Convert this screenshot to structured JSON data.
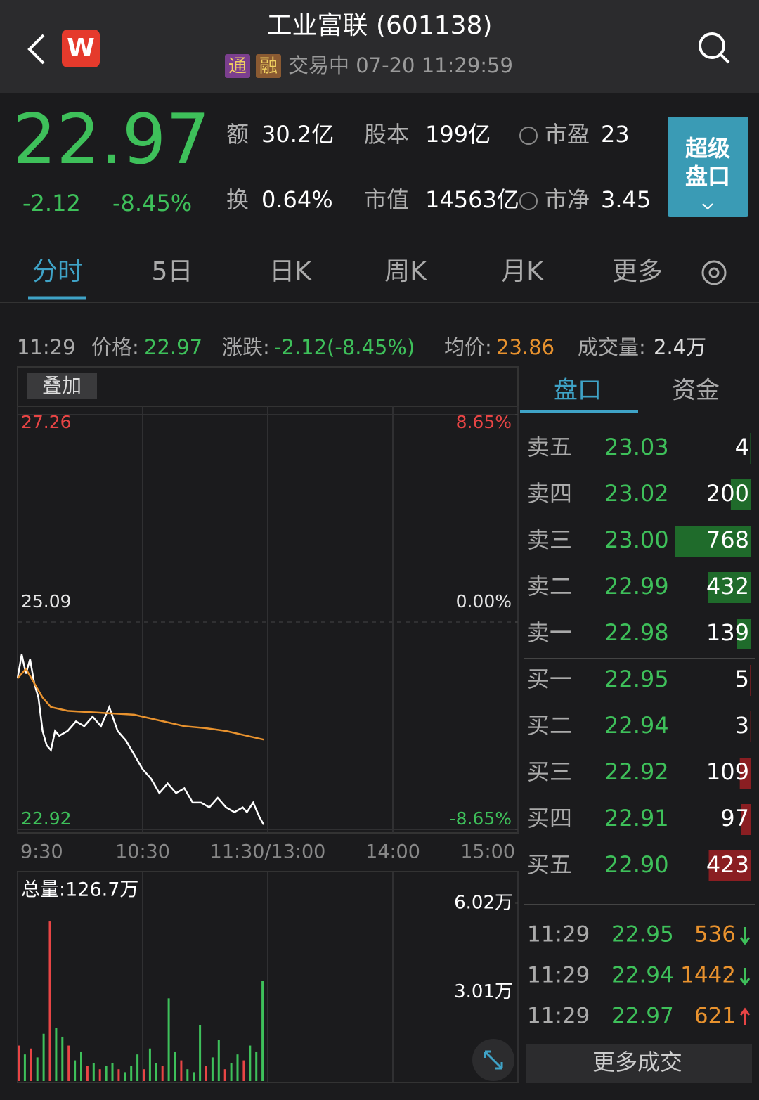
{
  "header": {
    "logo": "W",
    "title": "工业富联 (601138)",
    "tags": [
      "通",
      "融"
    ],
    "status": "交易中 07-20 11:29:59"
  },
  "quote": {
    "price": "22.97",
    "change": "-2.12",
    "change_pct": "-8.45%",
    "metrics": [
      {
        "label": "额",
        "value": "30.2亿"
      },
      {
        "label": "股本",
        "value": "199亿"
      },
      {
        "label": "市盈",
        "value": "23"
      },
      {
        "label": "换",
        "value": "0.64%"
      },
      {
        "label": "市值",
        "value": "14563亿"
      },
      {
        "label": "市净",
        "value": "3.45"
      }
    ],
    "button": [
      "超级",
      "盘口"
    ]
  },
  "tabs": [
    "分时",
    "5日",
    "日K",
    "周K",
    "月K",
    "更多"
  ],
  "info": {
    "time": "11:29",
    "price_label": "价格:",
    "price": "22.97",
    "change_label": "涨跌:",
    "change": "-2.12(-8.45%)",
    "avg_label": "均价:",
    "avg": "23.86",
    "volume_label": "成交量:",
    "volume": "2.4万"
  },
  "overlay_button": "叠加",
  "chart_data": [
    {
      "type": "line",
      "xlim": [
        0,
        240
      ],
      "xticks": [
        {
          "value": 0,
          "label": "9:30"
        },
        {
          "value": 60,
          "label": "10:30"
        },
        {
          "value": 120,
          "label": "11:30/13:00"
        },
        {
          "value": 180,
          "label": "14:00"
        },
        {
          "value": 240,
          "label": "15:00"
        }
      ],
      "ylim": [
        22.92,
        27.26
      ],
      "yticks": [
        22.92,
        25.09,
        27.26
      ],
      "ytick_colors": [
        "#3ec05a",
        "#e6e6e6",
        "#e84545"
      ],
      "y2lim": [
        -8.65,
        8.65
      ],
      "y2ticks": [
        {
          "value": -8.65,
          "label": "-8.65%"
        },
        {
          "value": 0,
          "label": "0.00%"
        },
        {
          "value": 8.65,
          "label": "8.65%"
        }
      ],
      "grid": true,
      "series": [
        {
          "color": "#ffffff",
          "x": [
            0,
            2,
            4,
            6,
            8,
            10,
            12,
            14,
            16,
            18,
            20,
            24,
            28,
            32,
            36,
            40,
            44,
            48,
            52,
            56,
            60,
            64,
            68,
            72,
            76,
            80,
            84,
            88,
            92,
            96,
            100,
            104,
            108,
            110,
            113,
            116,
            118
          ],
          "values": [
            24.5,
            24.75,
            24.55,
            24.7,
            24.45,
            24.3,
            23.95,
            23.8,
            23.75,
            23.95,
            23.9,
            23.95,
            24.05,
            24.0,
            24.1,
            24.0,
            24.2,
            23.95,
            23.85,
            23.7,
            23.55,
            23.45,
            23.3,
            23.4,
            23.3,
            23.35,
            23.2,
            23.2,
            23.15,
            23.25,
            23.15,
            23.1,
            23.15,
            23.1,
            23.2,
            23.05,
            22.97
          ]
        },
        {
          "color": "#e8922e",
          "x": [
            0,
            4,
            8,
            12,
            16,
            24,
            40,
            56,
            70,
            80,
            90,
            100,
            110,
            118
          ],
          "values": [
            24.5,
            24.6,
            24.45,
            24.3,
            24.2,
            24.16,
            24.14,
            24.12,
            24.05,
            24.0,
            23.98,
            23.95,
            23.9,
            23.86
          ]
        }
      ]
    },
    {
      "type": "bar",
      "title": "总量:126.7万",
      "xlim": [
        0,
        240
      ],
      "ylim": [
        0,
        6.02
      ],
      "yticks": [
        {
          "value": 3.01,
          "label": "3.01万"
        },
        {
          "value": 6.02,
          "label": "6.02万"
        }
      ],
      "x": [
        0,
        3,
        6,
        9,
        12,
        15,
        18,
        21,
        24,
        27,
        30,
        33,
        36,
        39,
        42,
        45,
        48,
        51,
        54,
        57,
        60,
        63,
        66,
        69,
        72,
        75,
        78,
        81,
        84,
        87,
        90,
        93,
        96,
        99,
        102,
        105,
        108,
        111,
        114,
        117
      ],
      "values": [
        1.2,
        0.9,
        1.1,
        0.8,
        1.6,
        5.4,
        1.8,
        1.5,
        1.2,
        0.7,
        1.0,
        0.5,
        0.6,
        0.4,
        0.5,
        0.6,
        0.4,
        0.3,
        0.5,
        0.9,
        0.4,
        1.1,
        0.6,
        0.5,
        2.8,
        1.0,
        0.7,
        0.4,
        0.3,
        1.9,
        0.5,
        0.8,
        1.4,
        0.4,
        0.6,
        0.9,
        0.7,
        1.2,
        1.0,
        3.4
      ],
      "colors": [
        "#e84545",
        "#3ec05a",
        "#e84545",
        "#3ec05a",
        "#3ec05a",
        "#e84545",
        "#3ec05a",
        "#3ec05a",
        "#e84545",
        "#3ec05a",
        "#3ec05a",
        "#e84545",
        "#3ec05a",
        "#e84545",
        "#3ec05a",
        "#3ec05a",
        "#e84545",
        "#3ec05a",
        "#3ec05a",
        "#3ec05a",
        "#e84545",
        "#3ec05a",
        "#3ec05a",
        "#e84545",
        "#3ec05a",
        "#3ec05a",
        "#e84545",
        "#3ec05a",
        "#3ec05a",
        "#3ec05a",
        "#e84545",
        "#3ec05a",
        "#3ec05a",
        "#e84545",
        "#3ec05a",
        "#3ec05a",
        "#e84545",
        "#3ec05a",
        "#3ec05a",
        "#3ec05a"
      ]
    }
  ],
  "side_tabs": [
    "盘口",
    "资金"
  ],
  "order_book": {
    "ask_bar_color": "#1f6b2b",
    "bid_bar_color": "#8a1e22",
    "asks": [
      {
        "label": "卖五",
        "price": "23.03",
        "size": 4
      },
      {
        "label": "卖四",
        "price": "23.02",
        "size": 200
      },
      {
        "label": "卖三",
        "price": "23.00",
        "size": 768
      },
      {
        "label": "卖二",
        "price": "22.99",
        "size": 432
      },
      {
        "label": "卖一",
        "price": "22.98",
        "size": 139
      }
    ],
    "bids": [
      {
        "label": "买一",
        "price": "22.95",
        "size": 5
      },
      {
        "label": "买二",
        "price": "22.94",
        "size": 3
      },
      {
        "label": "买三",
        "price": "22.92",
        "size": 109
      },
      {
        "label": "买四",
        "price": "22.91",
        "size": 97
      },
      {
        "label": "买五",
        "price": "22.90",
        "size": 423
      }
    ]
  },
  "trades": [
    {
      "time": "11:29",
      "price": "22.95",
      "size": "536",
      "direction": "down"
    },
    {
      "time": "11:29",
      "price": "22.94",
      "size": "1442",
      "direction": "down"
    },
    {
      "time": "11:29",
      "price": "22.97",
      "size": "621",
      "direction": "up"
    }
  ],
  "more_trades": "更多成交"
}
